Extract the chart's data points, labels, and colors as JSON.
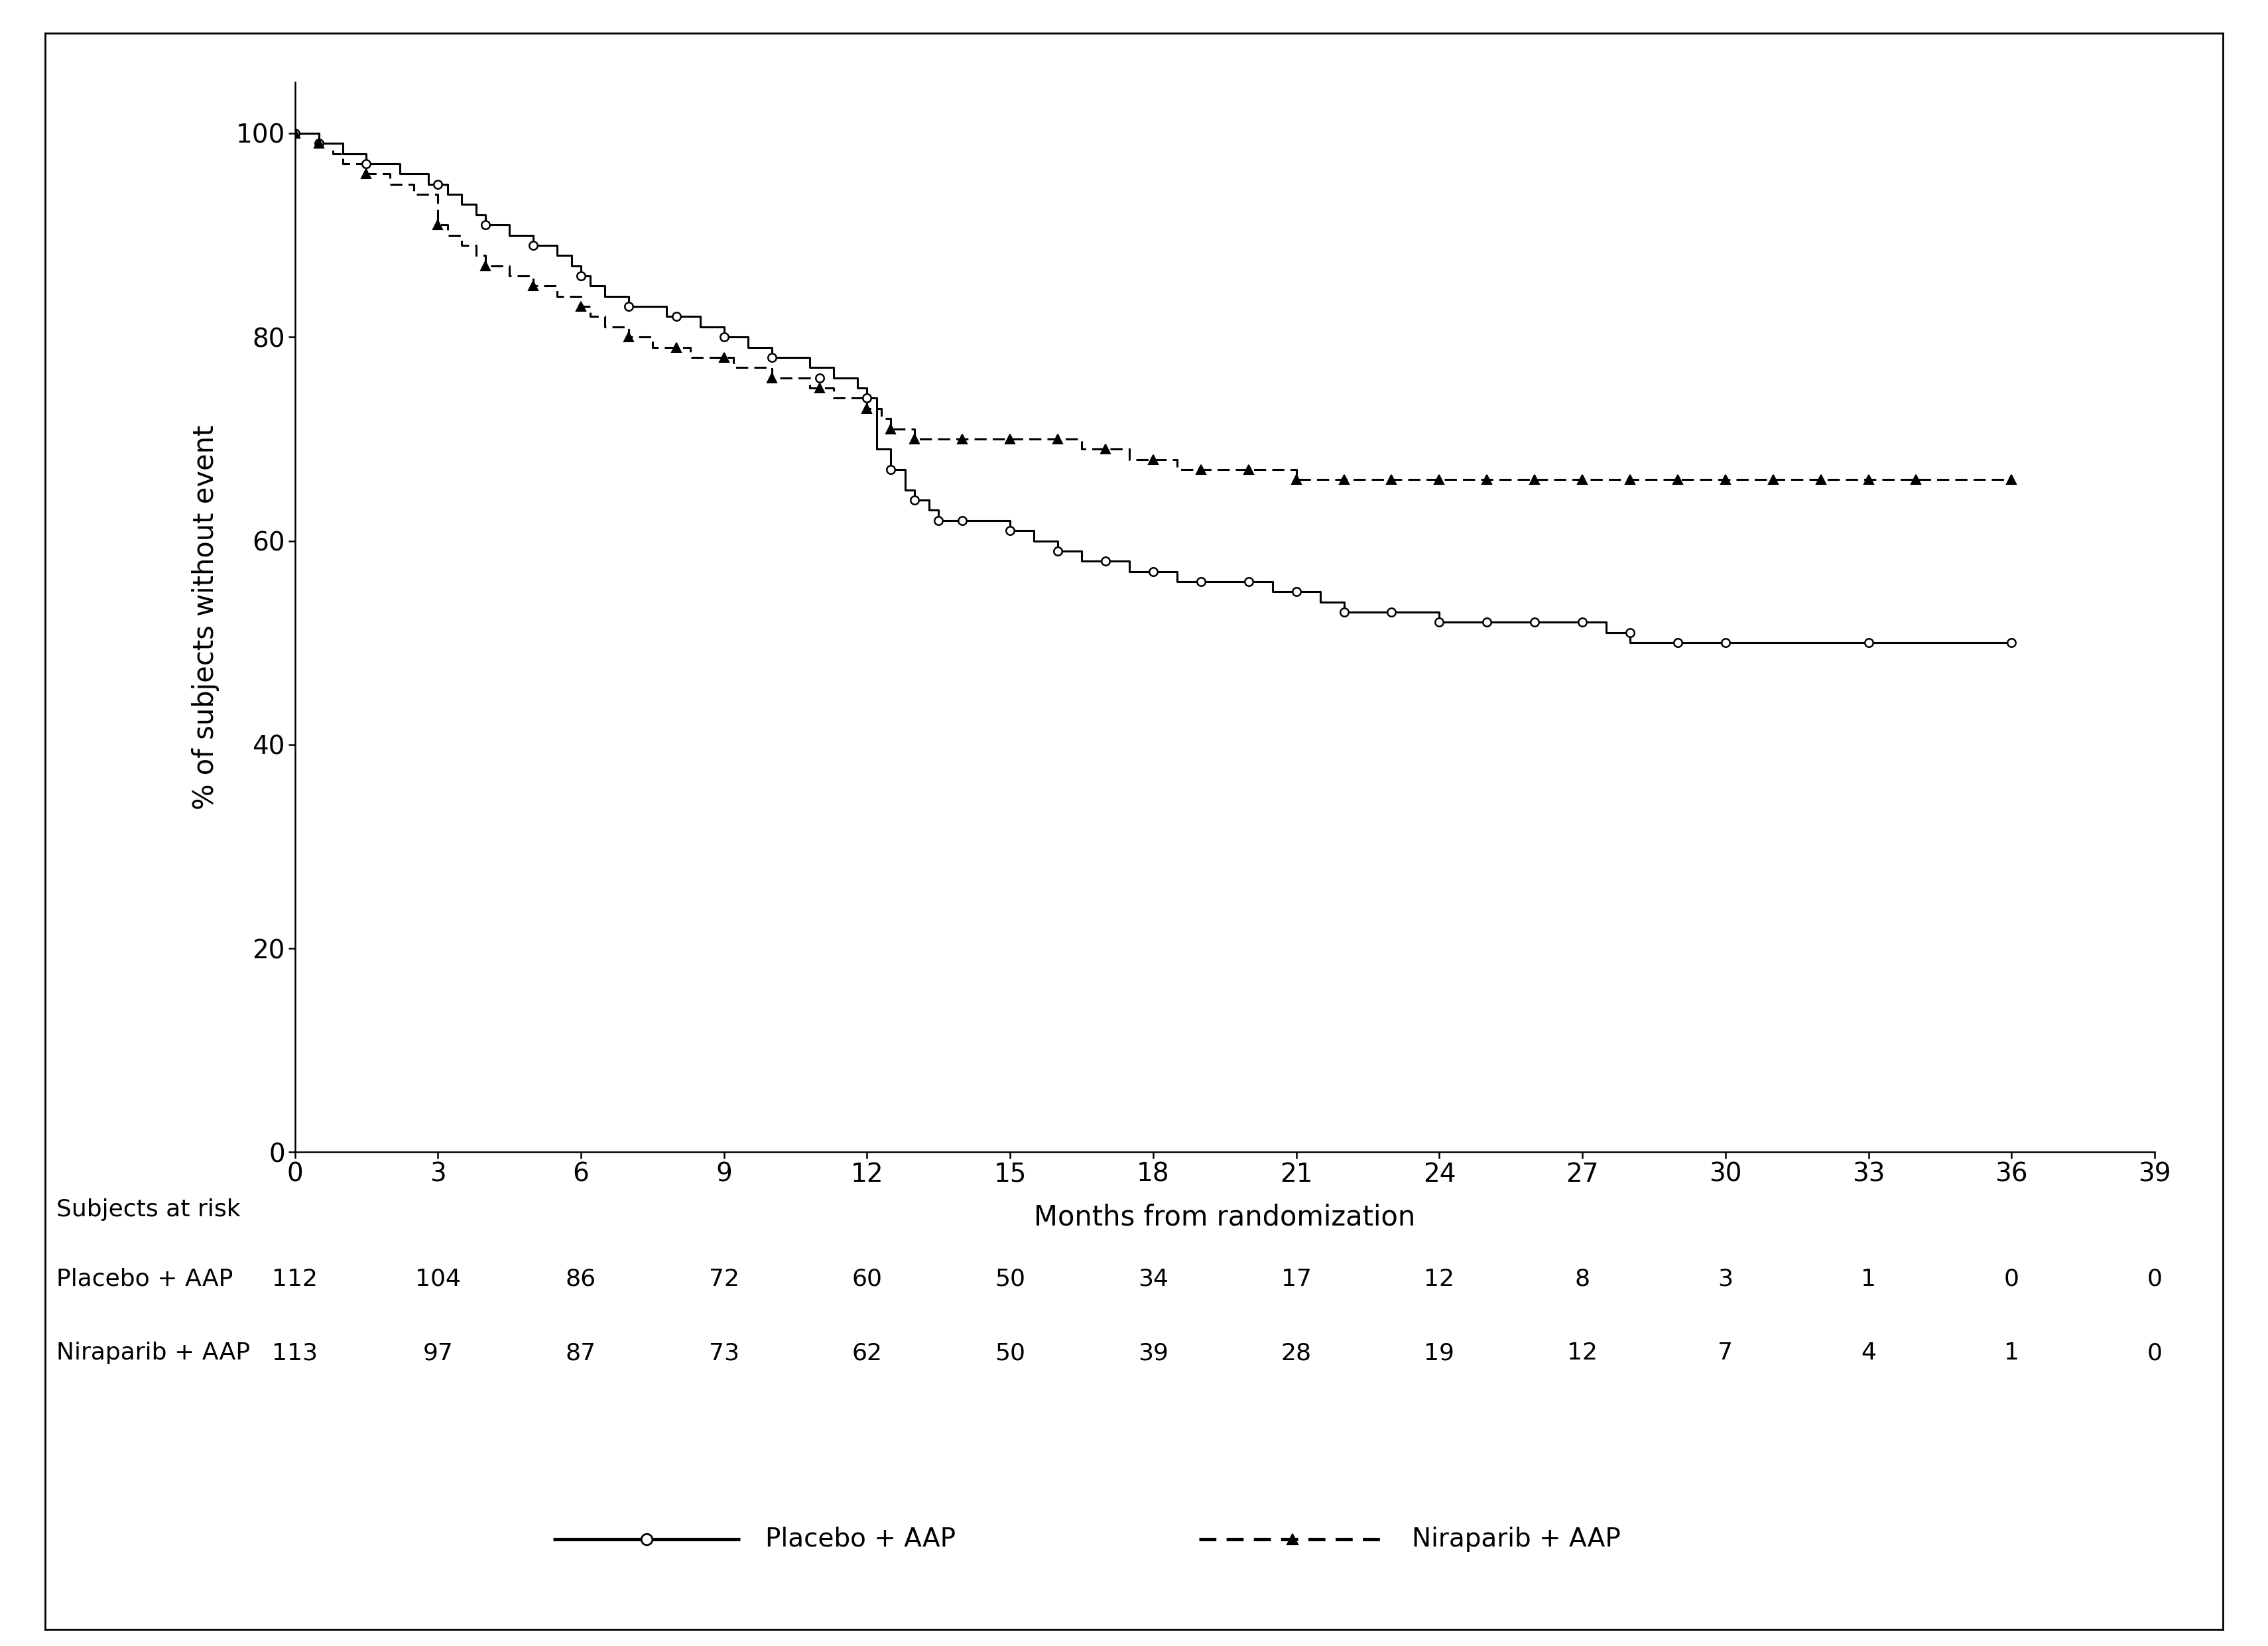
{
  "title": "",
  "ylabel": "% of subjects without event",
  "xlabel": "Months from randomization",
  "xlim": [
    0,
    39
  ],
  "ylim": [
    0,
    105
  ],
  "xticks": [
    0,
    3,
    6,
    9,
    12,
    15,
    18,
    21,
    24,
    27,
    30,
    33,
    36,
    39
  ],
  "yticks": [
    0,
    20,
    40,
    60,
    80,
    100
  ],
  "at_risk_times": [
    0,
    3,
    6,
    9,
    12,
    15,
    18,
    21,
    24,
    27,
    30,
    33,
    36,
    39
  ],
  "placebo_at_risk": [
    112,
    104,
    86,
    72,
    60,
    50,
    34,
    17,
    12,
    8,
    3,
    1,
    0,
    0
  ],
  "niraparib_at_risk": [
    113,
    97,
    87,
    73,
    62,
    50,
    39,
    28,
    19,
    12,
    7,
    4,
    1,
    0
  ],
  "placebo_times": [
    0,
    0.3,
    0.5,
    0.8,
    1.0,
    1.2,
    1.5,
    1.8,
    2.0,
    2.2,
    2.5,
    2.8,
    3.0,
    3.2,
    3.5,
    3.8,
    4.0,
    4.3,
    4.5,
    4.8,
    5.0,
    5.2,
    5.5,
    5.8,
    6.0,
    6.2,
    6.5,
    6.8,
    7.0,
    7.2,
    7.5,
    7.8,
    8.0,
    8.3,
    8.5,
    8.8,
    9.0,
    9.2,
    9.5,
    9.8,
    10.0,
    10.3,
    10.5,
    10.8,
    11.0,
    11.3,
    11.5,
    11.8,
    12.0,
    12.2,
    12.5,
    12.8,
    13.0,
    13.3,
    13.5,
    14.0,
    14.5,
    15.0,
    15.5,
    16.0,
    16.5,
    17.0,
    17.5,
    18.0,
    18.5,
    19.0,
    19.5,
    20.0,
    20.5,
    21.0,
    21.5,
    22.0,
    22.5,
    23.0,
    24.0,
    25.0,
    26.0,
    27.0,
    27.5,
    28.0,
    29.0,
    30.0,
    33.0,
    36.0
  ],
  "placebo_survival": [
    100,
    100,
    99,
    99,
    98,
    98,
    97,
    97,
    97,
    96,
    96,
    95,
    95,
    94,
    93,
    92,
    91,
    91,
    90,
    90,
    89,
    89,
    88,
    87,
    86,
    85,
    84,
    84,
    83,
    83,
    83,
    82,
    82,
    82,
    81,
    81,
    80,
    80,
    79,
    79,
    78,
    78,
    78,
    77,
    77,
    76,
    76,
    75,
    74,
    69,
    67,
    65,
    64,
    63,
    62,
    62,
    62,
    61,
    60,
    59,
    58,
    58,
    57,
    57,
    56,
    56,
    56,
    56,
    55,
    55,
    54,
    53,
    53,
    53,
    52,
    52,
    52,
    52,
    51,
    50,
    50,
    50,
    50,
    50
  ],
  "niraparib_times": [
    0,
    0.3,
    0.5,
    0.8,
    1.0,
    1.2,
    1.5,
    1.8,
    2.0,
    2.5,
    3.0,
    3.2,
    3.5,
    3.8,
    4.0,
    4.3,
    4.5,
    4.8,
    5.0,
    5.2,
    5.5,
    5.8,
    6.0,
    6.2,
    6.5,
    6.8,
    7.0,
    7.2,
    7.5,
    7.8,
    8.0,
    8.3,
    8.5,
    8.8,
    9.0,
    9.2,
    9.5,
    9.8,
    10.0,
    10.3,
    10.5,
    10.8,
    11.0,
    11.3,
    11.5,
    11.8,
    12.0,
    12.3,
    12.5,
    12.8,
    13.0,
    13.3,
    14.0,
    14.5,
    15.0,
    15.5,
    16.0,
    16.5,
    17.0,
    17.5,
    18.0,
    18.5,
    19.0,
    19.5,
    20.0,
    20.5,
    21.0,
    21.5,
    22.0,
    22.5,
    23.0,
    24.0,
    25.0,
    26.0,
    27.0,
    28.0,
    29.0,
    30.0,
    31.0,
    32.0,
    33.0,
    34.0,
    36.0
  ],
  "niraparib_survival": [
    100,
    100,
    99,
    98,
    97,
    97,
    96,
    96,
    95,
    94,
    91,
    90,
    89,
    88,
    87,
    87,
    86,
    86,
    85,
    85,
    84,
    84,
    83,
    82,
    81,
    81,
    80,
    80,
    79,
    79,
    79,
    78,
    78,
    78,
    78,
    77,
    77,
    77,
    76,
    76,
    76,
    75,
    75,
    74,
    74,
    74,
    73,
    72,
    71,
    71,
    70,
    70,
    70,
    70,
    70,
    70,
    70,
    69,
    69,
    68,
    68,
    67,
    67,
    67,
    67,
    67,
    66,
    66,
    66,
    66,
    66,
    66,
    66,
    66,
    66,
    66,
    66,
    66,
    66,
    66,
    66,
    66,
    66
  ],
  "placebo_marker_times": [
    0,
    0.5,
    1.5,
    3.0,
    4.0,
    5.0,
    6.0,
    7.0,
    8.0,
    9.0,
    10.0,
    11.0,
    12.0,
    12.5,
    13.0,
    13.5,
    14.0,
    15.0,
    16.0,
    17.0,
    18.0,
    19.0,
    20.0,
    21.0,
    22.0,
    23.0,
    24.0,
    25.0,
    26.0,
    27.0,
    28.0,
    29.0,
    30.0,
    33.0,
    36.0
  ],
  "placebo_marker_survival": [
    100,
    99,
    97,
    95,
    91,
    89,
    86,
    83,
    82,
    80,
    78,
    76,
    74,
    67,
    64,
    62,
    62,
    61,
    59,
    58,
    57,
    56,
    56,
    55,
    53,
    53,
    52,
    52,
    52,
    52,
    51,
    50,
    50,
    50,
    50
  ],
  "niraparib_marker_times": [
    0,
    0.5,
    1.5,
    3.0,
    4.0,
    5.0,
    6.0,
    7.0,
    8.0,
    9.0,
    10.0,
    11.0,
    12.0,
    12.5,
    13.0,
    14.0,
    15.0,
    16.0,
    17.0,
    18.0,
    19.0,
    20.0,
    21.0,
    22.0,
    23.0,
    24.0,
    25.0,
    26.0,
    27.0,
    28.0,
    29.0,
    30.0,
    31.0,
    32.0,
    33.0,
    34.0,
    36.0
  ],
  "niraparib_marker_survival": [
    100,
    99,
    96,
    91,
    87,
    85,
    83,
    80,
    79,
    78,
    76,
    75,
    73,
    71,
    70,
    70,
    70,
    70,
    69,
    68,
    67,
    67,
    66,
    66,
    66,
    66,
    66,
    66,
    66,
    66,
    66,
    66,
    66,
    66,
    66,
    66,
    66
  ],
  "subjects_at_risk_label": "Subjects at risk",
  "legend_placebo": "Placebo + AAP",
  "legend_niraparib": "Niraparib + AAP",
  "row_label_placebo": "Placebo + AAP",
  "row_label_niraparib": "Niraparib + AAP",
  "fontsize_ticks": 28,
  "fontsize_labels": 30,
  "fontsize_table": 26,
  "fontsize_legend": 28,
  "linewidth": 2.2,
  "marker_size": 9
}
